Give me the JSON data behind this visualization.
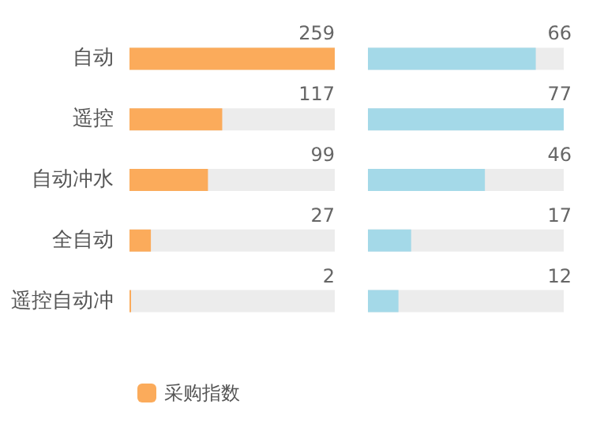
{
  "chart_data": [
    {
      "type": "bar",
      "orientation": "horizontal",
      "categories": [
        "自动",
        "遥控",
        "自动冲水",
        "全自动",
        "遥控自动冲"
      ],
      "series": [
        {
          "name": "采购指数",
          "color": "#fbab5b",
          "values": [
            259,
            117,
            99,
            27,
            2
          ]
        }
      ],
      "data_labels": true,
      "legend": "bottom left"
    },
    {
      "type": "bar",
      "orientation": "horizontal",
      "categories": [
        null,
        null,
        null,
        null,
        null
      ],
      "series": [
        {
          "color": "#a4d9e8",
          "values": [
            66,
            77,
            46,
            17,
            12
          ]
        }
      ],
      "data_labels": true,
      "legend": false
    }
  ]
}
